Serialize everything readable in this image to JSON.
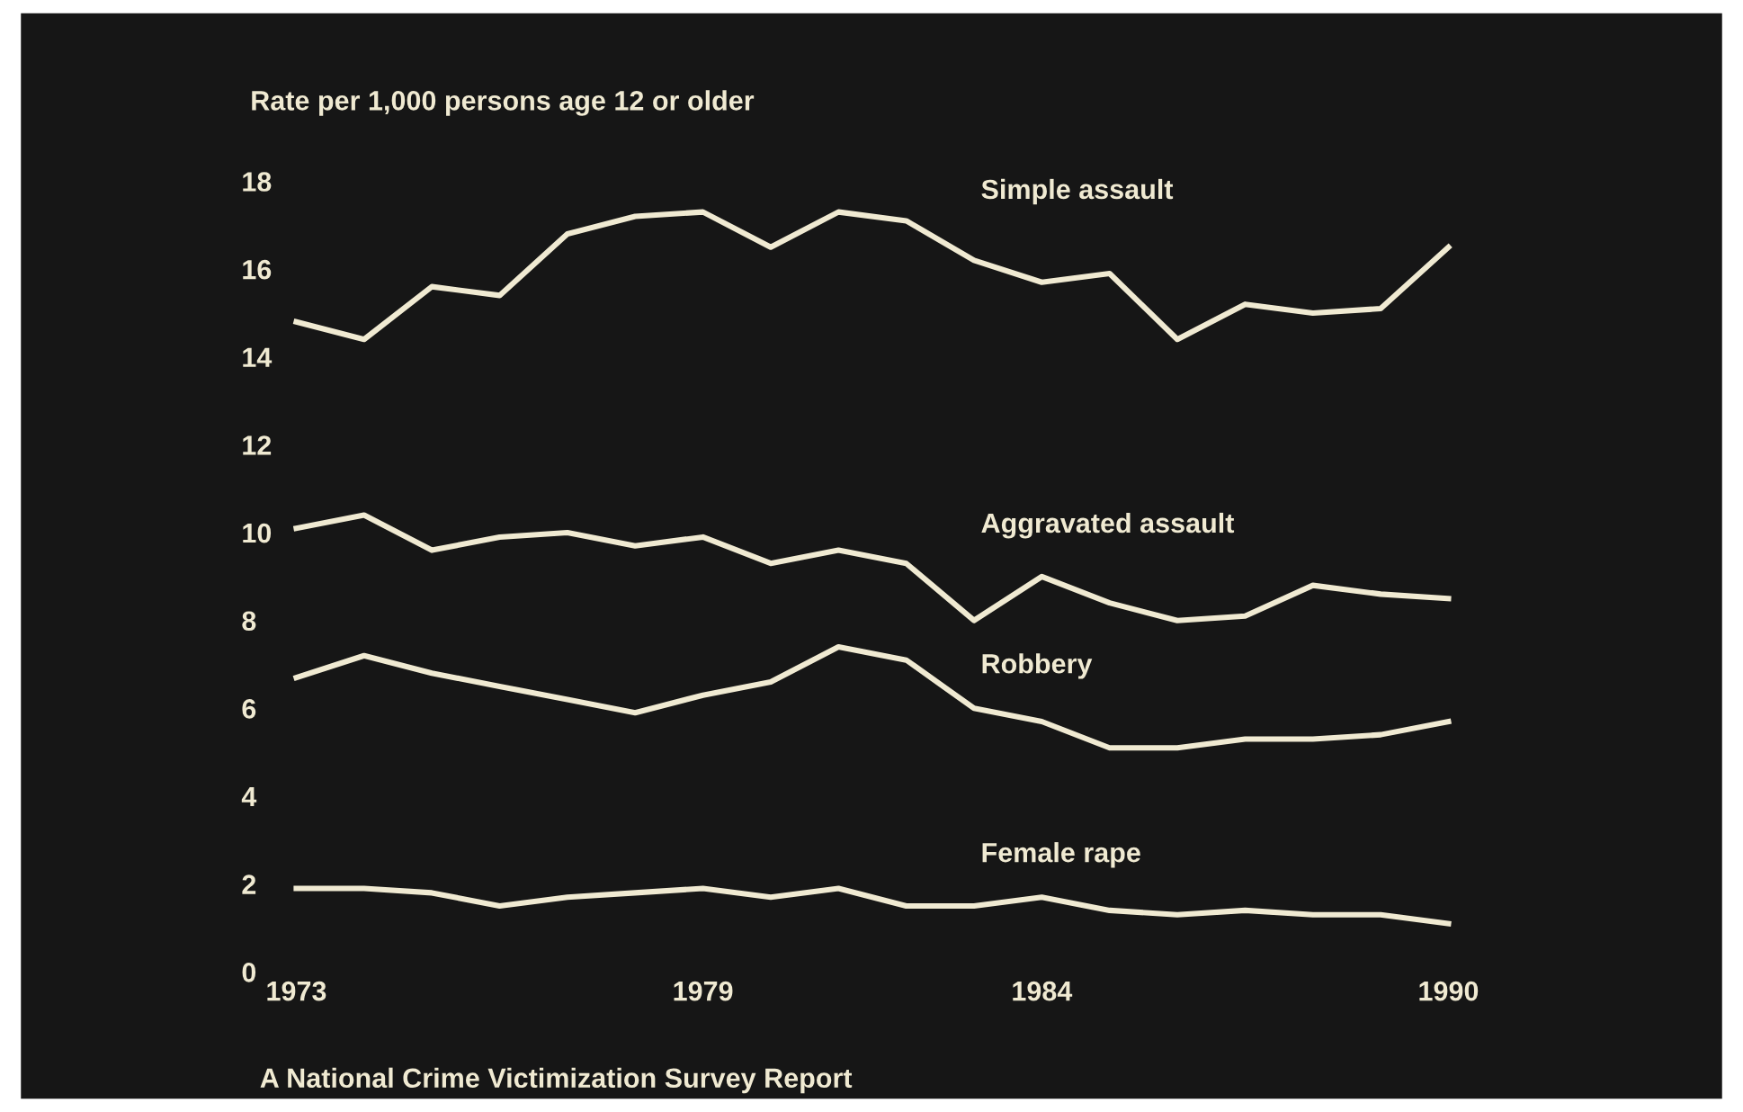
{
  "chart_data": {
    "type": "line",
    "ylabel": "Rate per 1,000 persons age 12 or older",
    "x": [
      1973,
      1974,
      1975,
      1976,
      1977,
      1978,
      1979,
      1980,
      1981,
      1982,
      1983,
      1984,
      1985,
      1986,
      1987,
      1988,
      1989,
      1990
    ],
    "series": [
      {
        "name": "Simple assault",
        "color": "#f0ead2",
        "values": [
          14.8,
          14.4,
          15.6,
          15.4,
          16.8,
          17.2,
          17.3,
          16.5,
          17.3,
          17.1,
          16.2,
          15.7,
          15.9,
          14.4,
          15.2,
          15.0,
          15.1,
          16.5
        ]
      },
      {
        "name": "Aggravated assault",
        "color": "#f0ead2",
        "values": [
          10.1,
          10.4,
          9.6,
          9.9,
          10.0,
          9.7,
          9.9,
          9.3,
          9.6,
          9.3,
          8.0,
          9.0,
          8.4,
          8.0,
          8.1,
          8.8,
          8.6,
          8.5
        ]
      },
      {
        "name": "Robbery",
        "color": "#f0ead2",
        "values": [
          6.7,
          7.2,
          6.8,
          6.5,
          6.2,
          5.9,
          6.3,
          6.6,
          7.4,
          7.1,
          6.0,
          5.7,
          5.1,
          5.1,
          5.3,
          5.3,
          5.4,
          5.7
        ]
      },
      {
        "name": "Female rape",
        "color": "#f0ead2",
        "values": [
          1.9,
          1.9,
          1.8,
          1.5,
          1.7,
          1.8,
          1.9,
          1.7,
          1.9,
          1.5,
          1.5,
          1.7,
          1.4,
          1.3,
          1.4,
          1.3,
          1.3,
          1.1
        ]
      }
    ],
    "xlim": [
      1973,
      1990
    ],
    "xticks": [
      1973,
      1979,
      1984,
      1990
    ],
    "ylim": [
      0,
      18
    ],
    "yticks": [
      0,
      2,
      4,
      6,
      8,
      10,
      12,
      14,
      16,
      18
    ],
    "grid": false,
    "legend": false,
    "marker": "none",
    "line_style": "solid",
    "annotations": [
      "A National Crime Victimization Survey Report"
    ]
  }
}
